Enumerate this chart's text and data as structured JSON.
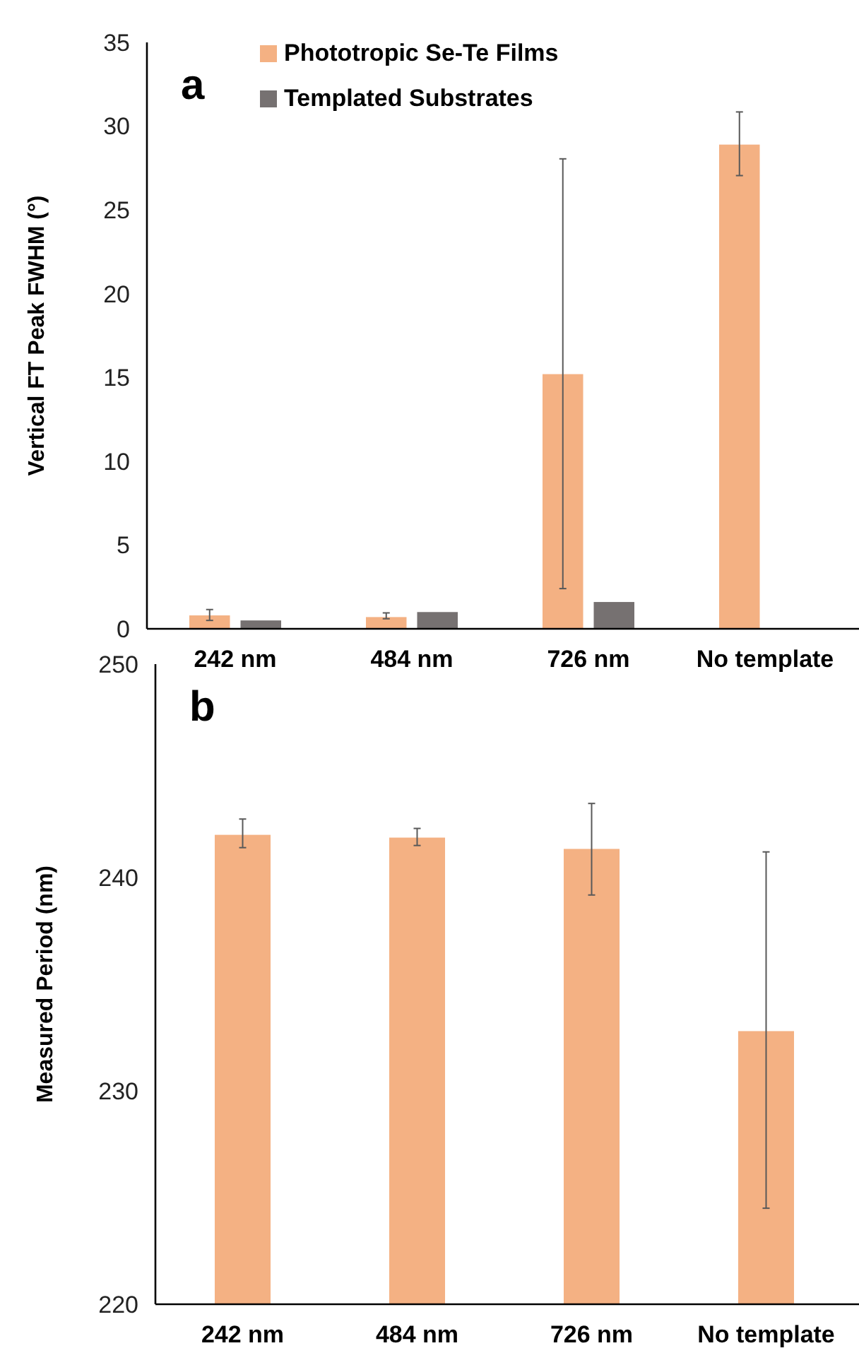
{
  "chart_data": [
    {
      "type": "bar",
      "ylabel": "Vertical FT Peak FWHM (°)",
      "annotations": [
        "a"
      ],
      "categories": [
        "242 nm",
        "484 nm",
        "726 nm",
        "No template"
      ],
      "series": [
        {
          "name": "Phototropic Se-Te Films",
          "color": "#f4b183",
          "values": [
            0.8,
            0.7,
            15.2,
            28.9
          ],
          "errors": [
            [
              0.5,
              1.15
            ],
            [
              0.6,
              0.95
            ],
            [
              2.4,
              28.05
            ],
            [
              27.05,
              30.85
            ]
          ]
        },
        {
          "name": "Templated Substrates",
          "color": "#767171",
          "values": [
            0.5,
            1.0,
            1.6,
            null
          ]
        }
      ],
      "ylim": [
        0,
        35
      ],
      "yticks": [
        0,
        5,
        10,
        15,
        20,
        25,
        30,
        35
      ],
      "grid": false,
      "legend": "top"
    },
    {
      "type": "bar",
      "ylabel": "Measured Period (nm)",
      "annotations": [
        "b"
      ],
      "categories": [
        "242 nm",
        "484 nm",
        "726 nm",
        "No template"
      ],
      "series": [
        {
          "color": "#f4b183",
          "values": [
            242.0,
            241.87,
            241.34,
            232.8
          ],
          "errors": [
            [
              241.4,
              242.74
            ],
            [
              241.5,
              242.3
            ],
            [
              239.18,
              243.47
            ],
            [
              224.5,
              241.2
            ]
          ]
        }
      ],
      "ylim": [
        220,
        250
      ],
      "yticks": [
        220,
        230,
        240,
        250
      ],
      "grid": false,
      "legend": false
    }
  ]
}
